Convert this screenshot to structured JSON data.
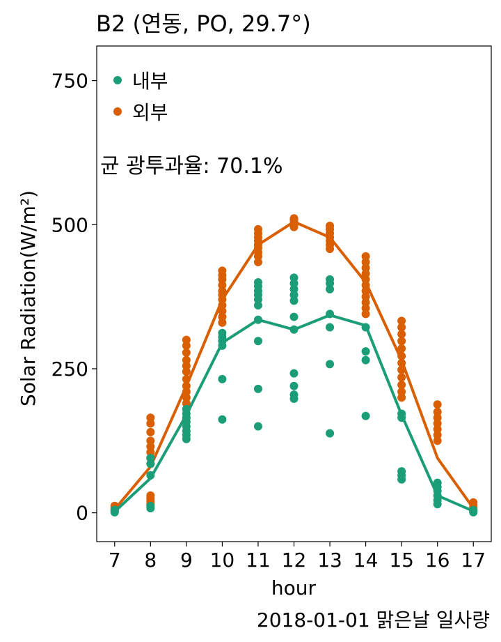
{
  "chart_data": {
    "type": "scatter",
    "title": "B2 (연동, PO, 29.7°)",
    "xlabel": "hour",
    "ylabel": "Solar Radiation(W/m²)",
    "caption": "2018-01-01 맑은날 일사량",
    "annotation": "균 광투과율: 70.1%",
    "xlim": [
      6.5,
      17.5
    ],
    "ylim": [
      -50,
      810
    ],
    "x_ticks": [
      7,
      8,
      9,
      10,
      11,
      12,
      13,
      14,
      15,
      16,
      17
    ],
    "y_ticks": [
      0,
      250,
      500,
      750
    ],
    "legend_position": "top-left",
    "series": [
      {
        "name": "외부",
        "color": "#D95F02",
        "mean_line": [
          [
            7,
            6
          ],
          [
            8,
            80
          ],
          [
            9,
            220
          ],
          [
            10,
            370
          ],
          [
            11,
            465
          ],
          [
            12,
            505
          ],
          [
            13,
            478
          ],
          [
            14,
            400
          ],
          [
            15,
            265
          ],
          [
            16,
            95
          ],
          [
            17,
            8
          ]
        ],
        "points": [
          [
            7,
            3
          ],
          [
            7,
            6
          ],
          [
            7,
            9
          ],
          [
            7,
            12
          ],
          [
            8,
            15
          ],
          [
            8,
            20
          ],
          [
            8,
            25
          ],
          [
            8,
            30
          ],
          [
            8,
            85
          ],
          [
            8,
            95
          ],
          [
            8,
            105
          ],
          [
            8,
            115
          ],
          [
            8,
            125
          ],
          [
            8,
            140
          ],
          [
            8,
            155
          ],
          [
            8,
            165
          ],
          [
            9,
            180
          ],
          [
            9,
            190
          ],
          [
            9,
            200
          ],
          [
            9,
            210
          ],
          [
            9,
            220
          ],
          [
            9,
            232
          ],
          [
            9,
            245
          ],
          [
            9,
            255
          ],
          [
            9,
            265
          ],
          [
            9,
            278
          ],
          [
            9,
            290
          ],
          [
            9,
            300
          ],
          [
            10,
            330
          ],
          [
            10,
            340
          ],
          [
            10,
            350
          ],
          [
            10,
            360
          ],
          [
            10,
            370
          ],
          [
            10,
            378
          ],
          [
            10,
            385
          ],
          [
            10,
            395
          ],
          [
            10,
            405
          ],
          [
            10,
            412
          ],
          [
            10,
            420
          ],
          [
            11,
            435
          ],
          [
            11,
            445
          ],
          [
            11,
            452
          ],
          [
            11,
            460
          ],
          [
            11,
            465
          ],
          [
            11,
            472
          ],
          [
            11,
            478
          ],
          [
            11,
            485
          ],
          [
            11,
            492
          ],
          [
            12,
            496
          ],
          [
            12,
            500
          ],
          [
            12,
            504
          ],
          [
            12,
            508
          ],
          [
            12,
            511
          ],
          [
            13,
            458
          ],
          [
            13,
            465
          ],
          [
            13,
            472
          ],
          [
            13,
            478
          ],
          [
            13,
            485
          ],
          [
            13,
            492
          ],
          [
            13,
            498
          ],
          [
            14,
            345
          ],
          [
            14,
            355
          ],
          [
            14,
            365
          ],
          [
            14,
            375
          ],
          [
            14,
            385
          ],
          [
            14,
            395
          ],
          [
            14,
            405
          ],
          [
            14,
            415
          ],
          [
            14,
            425
          ],
          [
            14,
            435
          ],
          [
            14,
            445
          ],
          [
            15,
            200
          ],
          [
            15,
            210
          ],
          [
            15,
            222
          ],
          [
            15,
            235
          ],
          [
            15,
            248
          ],
          [
            15,
            260
          ],
          [
            15,
            272
          ],
          [
            15,
            285
          ],
          [
            15,
            298
          ],
          [
            15,
            310
          ],
          [
            15,
            322
          ],
          [
            15,
            333
          ],
          [
            16,
            125
          ],
          [
            16,
            135
          ],
          [
            16,
            145
          ],
          [
            16,
            155
          ],
          [
            16,
            165
          ],
          [
            16,
            175
          ],
          [
            16,
            188
          ],
          [
            17,
            3
          ],
          [
            17,
            6
          ],
          [
            17,
            10
          ],
          [
            17,
            14
          ],
          [
            17,
            18
          ]
        ]
      },
      {
        "name": "내부",
        "color": "#1B9E77",
        "mean_line": [
          [
            7,
            2
          ],
          [
            8,
            60
          ],
          [
            9,
            170
          ],
          [
            10,
            295
          ],
          [
            11,
            335
          ],
          [
            12,
            318
          ],
          [
            13,
            343
          ],
          [
            14,
            325
          ],
          [
            15,
            170
          ],
          [
            16,
            30
          ],
          [
            17,
            3
          ]
        ],
        "points": [
          [
            7,
            1
          ],
          [
            7,
            3
          ],
          [
            7,
            5
          ],
          [
            8,
            8
          ],
          [
            8,
            12
          ],
          [
            8,
            65
          ],
          [
            8,
            85
          ],
          [
            8,
            95
          ],
          [
            9,
            128
          ],
          [
            9,
            135
          ],
          [
            9,
            142
          ],
          [
            9,
            150
          ],
          [
            9,
            158
          ],
          [
            9,
            165
          ],
          [
            9,
            172
          ],
          [
            9,
            180
          ],
          [
            10,
            162
          ],
          [
            10,
            232
          ],
          [
            10,
            290
          ],
          [
            10,
            298
          ],
          [
            10,
            305
          ],
          [
            10,
            312
          ],
          [
            11,
            150
          ],
          [
            11,
            215
          ],
          [
            11,
            298
          ],
          [
            11,
            335
          ],
          [
            11,
            360
          ],
          [
            11,
            370
          ],
          [
            11,
            378
          ],
          [
            11,
            385
          ],
          [
            11,
            393
          ],
          [
            11,
            400
          ],
          [
            12,
            198
          ],
          [
            12,
            205
          ],
          [
            12,
            220
          ],
          [
            12,
            242
          ],
          [
            12,
            318
          ],
          [
            12,
            340
          ],
          [
            12,
            368
          ],
          [
            12,
            378
          ],
          [
            12,
            388
          ],
          [
            12,
            398
          ],
          [
            12,
            408
          ],
          [
            13,
            138
          ],
          [
            13,
            258
          ],
          [
            13,
            322
          ],
          [
            13,
            345
          ],
          [
            13,
            388
          ],
          [
            13,
            398
          ],
          [
            13,
            405
          ],
          [
            14,
            168
          ],
          [
            14,
            265
          ],
          [
            14,
            280
          ],
          [
            14,
            322
          ],
          [
            15,
            58
          ],
          [
            15,
            65
          ],
          [
            15,
            72
          ],
          [
            15,
            165
          ],
          [
            15,
            172
          ],
          [
            16,
            15
          ],
          [
            16,
            22
          ],
          [
            16,
            30
          ],
          [
            16,
            38
          ],
          [
            16,
            45
          ],
          [
            16,
            52
          ],
          [
            17,
            1
          ],
          [
            17,
            3
          ],
          [
            17,
            5
          ]
        ]
      }
    ]
  }
}
